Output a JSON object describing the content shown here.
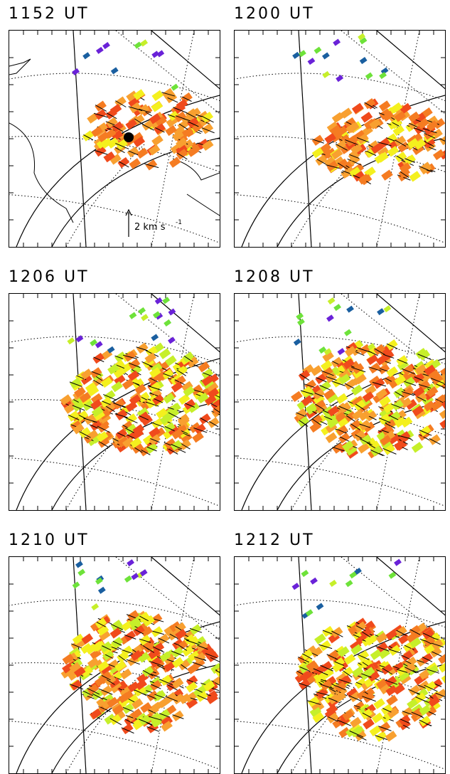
{
  "figure": {
    "panels": [
      {
        "id": "p1",
        "title": "1152 UT",
        "has_coastline": true,
        "has_radar_site": true,
        "scale_label": "2 km s",
        "scale_exponent": "-1"
      },
      {
        "id": "p2",
        "title": "1200 UT"
      },
      {
        "id": "p3",
        "title": "1206 UT"
      },
      {
        "id": "p4",
        "title": "1208 UT"
      },
      {
        "id": "p5",
        "title": "1210 UT"
      },
      {
        "id": "p6",
        "title": "1212 UT"
      }
    ],
    "colors": {
      "blue": "#1f3fd0",
      "purple": "#6a22d8",
      "teal": "#1a5fa0",
      "green": "#6ee23a",
      "lime": "#c6ef2a",
      "yellow": "#f4f01e",
      "orange": "#f8a030",
      "darkorange": "#f57c22",
      "red": "#f04a1c"
    }
  }
}
